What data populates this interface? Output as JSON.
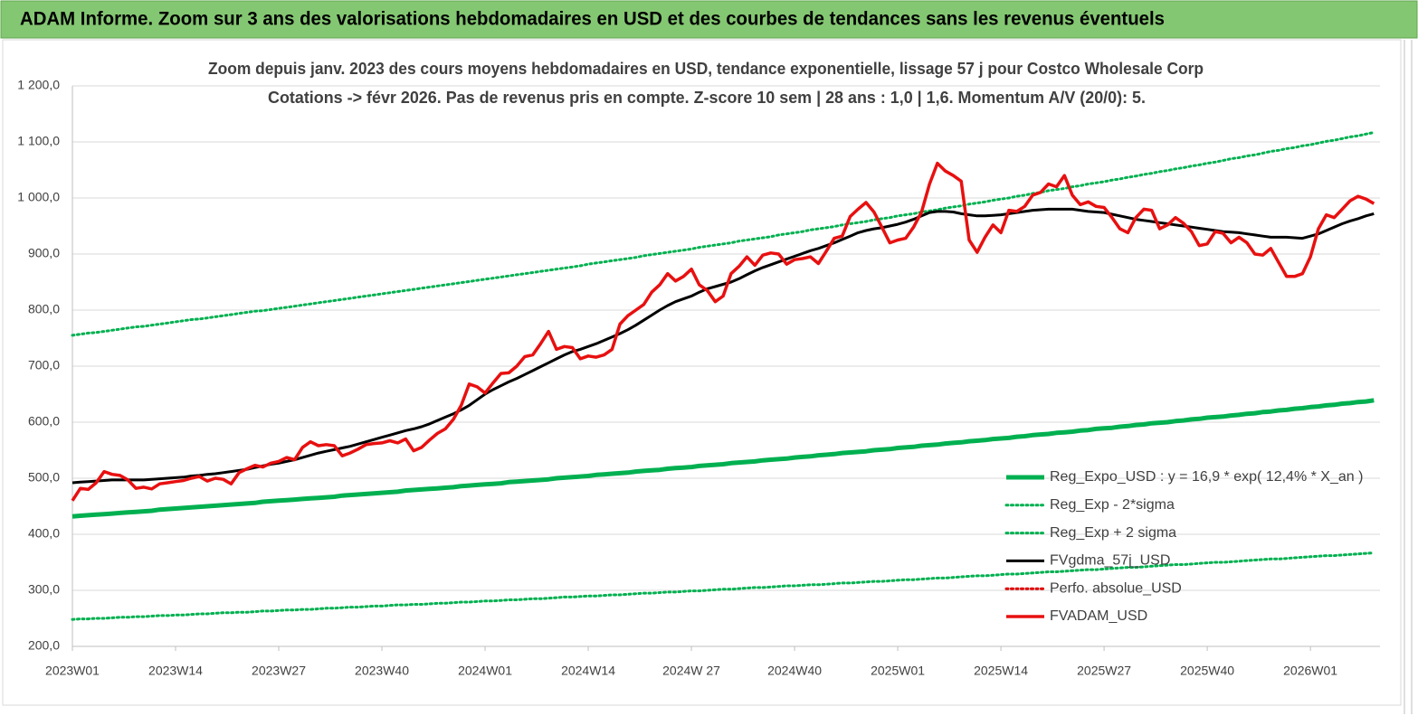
{
  "header": {
    "title": "ADAM Informe. Zoom sur 3 ans des valorisations hebdomadaires en USD et des courbes de tendances sans les revenus éventuels"
  },
  "chart_data": {
    "type": "line",
    "title": "Zoom depuis janv. 2023 des cours moyens hebdomadaires en USD, tendance exponentielle, lissage 57 j pour Costco Wholesale Corp",
    "subtitle": "Cotations -> févr 2026. Pas de revenus pris en compte. Z-score 10 sem | 28 ans : 1,0 | 1,6. Momentum A/V (20/0): 5.",
    "categories": [
      "2023W01",
      null,
      null,
      null,
      null,
      null,
      null,
      null,
      null,
      null,
      null,
      null,
      null,
      "2023W14",
      null,
      null,
      null,
      null,
      null,
      null,
      null,
      null,
      null,
      null,
      null,
      null,
      "2023W27",
      null,
      null,
      null,
      null,
      null,
      null,
      null,
      null,
      null,
      null,
      null,
      null,
      "2023W40",
      null,
      null,
      null,
      null,
      null,
      null,
      null,
      null,
      null,
      null,
      null,
      null,
      "2024W01",
      null,
      null,
      null,
      null,
      null,
      null,
      null,
      null,
      null,
      null,
      null,
      null,
      "2024W14",
      null,
      null,
      null,
      null,
      null,
      null,
      null,
      null,
      null,
      null,
      null,
      null,
      "2024W 27",
      null,
      null,
      null,
      null,
      null,
      null,
      null,
      null,
      null,
      null,
      null,
      null,
      "2024W40",
      null,
      null,
      null,
      null,
      null,
      null,
      null,
      null,
      null,
      null,
      null,
      null,
      "2025W01",
      null,
      null,
      null,
      null,
      null,
      null,
      null,
      null,
      null,
      null,
      null,
      null,
      "2025W14",
      null,
      null,
      null,
      null,
      null,
      null,
      null,
      null,
      null,
      null,
      null,
      null,
      "2025W27",
      null,
      null,
      null,
      null,
      null,
      null,
      null,
      null,
      null,
      null,
      null,
      null,
      "2025W40",
      null,
      null,
      null,
      null,
      null,
      null,
      null,
      null,
      null,
      null,
      null,
      null,
      "2026W01",
      null,
      null,
      null,
      null,
      null,
      null,
      null,
      null
    ],
    "ylim": [
      200,
      1200
    ],
    "yticks": [
      {
        "value": 200,
        "label": "200,0"
      },
      {
        "value": 300,
        "label": "300,0"
      },
      {
        "value": 400,
        "label": "400,0"
      },
      {
        "value": 500,
        "label": "500,0"
      },
      {
        "value": 600,
        "label": "600,0"
      },
      {
        "value": 700,
        "label": "700,0"
      },
      {
        "value": 800,
        "label": "800,0"
      },
      {
        "value": 900,
        "label": "900,0"
      },
      {
        "value": 1000,
        "label": "1 000,0"
      },
      {
        "value": 1100,
        "label": "1 100,0"
      },
      {
        "value": 1200,
        "label": "1 200,0"
      }
    ],
    "grid": true,
    "legend": "lower-right",
    "series": [
      {
        "name": "Reg_Expo_USD : y = 16,9 * exp( 12,4% *  X_an )",
        "color": "#00b050",
        "style": "solid",
        "width": 5,
        "values": [
          432,
          433,
          434,
          435,
          436,
          437,
          438,
          439,
          440,
          441,
          442,
          444,
          445,
          446,
          447,
          448,
          449,
          450,
          451,
          452,
          453,
          454,
          455,
          456,
          458,
          459,
          460,
          461,
          462,
          463,
          464,
          465,
          466,
          467,
          469,
          470,
          471,
          472,
          473,
          474,
          475,
          476,
          478,
          479,
          480,
          481,
          482,
          483,
          484,
          486,
          487,
          488,
          489,
          490,
          491,
          493,
          494,
          495,
          496,
          497,
          498,
          500,
          501,
          502,
          503,
          504,
          506,
          507,
          508,
          509,
          510,
          512,
          513,
          514,
          515,
          517,
          518,
          519,
          520,
          522,
          523,
          524,
          525,
          527,
          528,
          529,
          530,
          532,
          533,
          534,
          535,
          537,
          538,
          539,
          541,
          542,
          543,
          545,
          546,
          547,
          548,
          550,
          551,
          552,
          554,
          555,
          556,
          558,
          559,
          560,
          562,
          563,
          564,
          566,
          567,
          568,
          570,
          571,
          572,
          574,
          575,
          577,
          578,
          579,
          581,
          582,
          583,
          585,
          586,
          588,
          589,
          590,
          592,
          593,
          595,
          596,
          598,
          599,
          600,
          602,
          603,
          605,
          606,
          608,
          609,
          610,
          612,
          613,
          615,
          616,
          618,
          619,
          621,
          622,
          624,
          625,
          627,
          628,
          630,
          631,
          633,
          634,
          636,
          637,
          639
        ]
      },
      {
        "name": "Reg_Exp - 2*sigma",
        "color": "#00b050",
        "style": "dotted",
        "width": 3,
        "values": [
          248,
          249,
          249,
          250,
          250,
          251,
          252,
          252,
          253,
          253,
          254,
          255,
          255,
          256,
          256,
          257,
          258,
          258,
          259,
          260,
          260,
          261,
          261,
          262,
          263,
          263,
          264,
          265,
          265,
          266,
          266,
          267,
          268,
          268,
          269,
          270,
          270,
          271,
          272,
          272,
          273,
          274,
          274,
          275,
          275,
          276,
          277,
          277,
          278,
          279,
          279,
          280,
          281,
          281,
          282,
          283,
          283,
          284,
          285,
          285,
          286,
          287,
          288,
          288,
          289,
          290,
          290,
          291,
          292,
          292,
          293,
          294,
          295,
          295,
          296,
          297,
          297,
          298,
          299,
          299,
          300,
          301,
          302,
          302,
          303,
          304,
          305,
          305,
          306,
          307,
          308,
          308,
          309,
          310,
          310,
          311,
          312,
          313,
          313,
          314,
          315,
          316,
          316,
          317,
          318,
          319,
          319,
          320,
          321,
          322,
          322,
          323,
          324,
          325,
          326,
          326,
          327,
          328,
          329,
          329,
          330,
          331,
          332,
          333,
          333,
          334,
          335,
          336,
          337,
          337,
          338,
          339,
          340,
          341,
          341,
          342,
          343,
          344,
          345,
          346,
          346,
          347,
          348,
          349,
          350,
          350,
          351,
          352,
          353,
          354,
          355,
          356,
          356,
          357,
          358,
          359,
          360,
          361,
          362,
          362,
          363,
          364,
          365,
          366,
          367
        ]
      },
      {
        "name": "Reg_Exp + 2 sigma",
        "color": "#00b050",
        "style": "dotted",
        "width": 3,
        "values": [
          755,
          757,
          759,
          760,
          762,
          764,
          766,
          768,
          770,
          771,
          773,
          775,
          777,
          779,
          781,
          783,
          784,
          786,
          788,
          790,
          792,
          794,
          796,
          798,
          799,
          801,
          803,
          805,
          807,
          809,
          811,
          813,
          815,
          817,
          819,
          821,
          823,
          825,
          827,
          829,
          831,
          833,
          835,
          837,
          839,
          841,
          843,
          845,
          847,
          849,
          851,
          853,
          855,
          857,
          859,
          861,
          863,
          865,
          867,
          869,
          871,
          873,
          875,
          877,
          879,
          882,
          884,
          886,
          888,
          890,
          892,
          894,
          897,
          899,
          901,
          903,
          905,
          907,
          909,
          912,
          914,
          916,
          918,
          920,
          923,
          925,
          927,
          929,
          931,
          934,
          936,
          938,
          940,
          943,
          945,
          947,
          949,
          952,
          954,
          956,
          958,
          961,
          963,
          965,
          968,
          970,
          972,
          975,
          977,
          979,
          982,
          984,
          986,
          989,
          991,
          993,
          996,
          998,
          1000,
          1003,
          1005,
          1008,
          1010,
          1013,
          1015,
          1017,
          1020,
          1022,
          1025,
          1027,
          1029,
          1032,
          1034,
          1037,
          1039,
          1042,
          1044,
          1047,
          1049,
          1052,
          1054,
          1057,
          1059,
          1062,
          1064,
          1067,
          1070,
          1072,
          1075,
          1077,
          1080,
          1083,
          1085,
          1088,
          1090,
          1093,
          1095,
          1098,
          1101,
          1103,
          1106,
          1109,
          1111,
          1114,
          1117
        ]
      },
      {
        "name": "FVgdma_57j_USD",
        "color": "#000000",
        "style": "solid",
        "width": 3,
        "values": [
          492,
          493,
          494,
          495,
          496,
          497,
          497,
          497,
          497,
          497,
          498,
          499,
          500,
          501,
          502,
          504,
          505,
          507,
          508,
          510,
          512,
          514,
          516,
          519,
          522,
          525,
          527,
          530,
          533,
          537,
          541,
          545,
          548,
          551,
          554,
          557,
          561,
          565,
          569,
          573,
          577,
          581,
          585,
          588,
          592,
          597,
          603,
          609,
          615,
          622,
          630,
          640,
          650,
          658,
          665,
          672,
          678,
          685,
          692,
          699,
          706,
          713,
          720,
          726,
          730,
          735,
          740,
          746,
          752,
          758,
          765,
          773,
          782,
          791,
          800,
          808,
          815,
          820,
          825,
          832,
          838,
          842,
          846,
          850,
          856,
          863,
          870,
          876,
          881,
          886,
          891,
          896,
          901,
          906,
          910,
          915,
          920,
          926,
          932,
          938,
          942,
          945,
          947,
          950,
          953,
          957,
          962,
          968,
          974,
          976,
          976,
          975,
          972,
          970,
          968,
          968,
          969,
          970,
          972,
          974,
          976,
          978,
          979,
          980,
          980,
          980,
          980,
          978,
          976,
          975,
          974,
          971,
          968,
          965,
          962,
          960,
          958,
          956,
          954,
          952,
          950,
          948,
          946,
          944,
          942,
          940,
          939,
          938,
          936,
          934,
          932,
          930,
          930,
          930,
          929,
          928,
          932,
          936,
          942,
          948,
          954,
          959,
          963,
          968,
          972
        ]
      },
      {
        "name": "Perfo. absolue_USD",
        "color": "#e00000",
        "style": "dotted",
        "width": 3
      },
      {
        "name": "FVADAM_USD",
        "color": "#e81010",
        "style": "solid",
        "width": 3.5,
        "values": [
          460,
          482,
          480,
          492,
          512,
          507,
          505,
          497,
          482,
          484,
          481,
          490,
          492,
          494,
          496,
          500,
          503,
          495,
          500,
          498,
          490,
          510,
          517,
          523,
          520,
          527,
          530,
          537,
          533,
          555,
          565,
          558,
          560,
          558,
          540,
          545,
          552,
          560,
          562,
          563,
          567,
          563,
          570,
          549,
          555,
          568,
          580,
          588,
          605,
          630,
          668,
          663,
          652,
          670,
          687,
          688,
          700,
          717,
          720,
          740,
          762,
          730,
          735,
          733,
          713,
          718,
          716,
          720,
          730,
          775,
          790,
          800,
          810,
          832,
          845,
          865,
          852,
          860,
          873,
          845,
          835,
          815,
          825,
          865,
          878,
          895,
          880,
          898,
          902,
          900,
          882,
          890,
          892,
          895,
          883,
          905,
          928,
          932,
          967,
          980,
          992,
          975,
          948,
          920,
          925,
          928,
          948,
          975,
          1025,
          1062,
          1048,
          1040,
          1030,
          925,
          903,
          930,
          952,
          938,
          978,
          976,
          985,
          1005,
          1010,
          1025,
          1020,
          1040,
          1005,
          988,
          993,
          985,
          983,
          965,
          945,
          938,
          965,
          980,
          978,
          945,
          952,
          965,
          955,
          940,
          915,
          918,
          940,
          937,
          920,
          930,
          920,
          900,
          898,
          910,
          885,
          860,
          860,
          865,
          895,
          945,
          970,
          965,
          980,
          995,
          1003,
          998,
          990
        ]
      }
    ]
  }
}
